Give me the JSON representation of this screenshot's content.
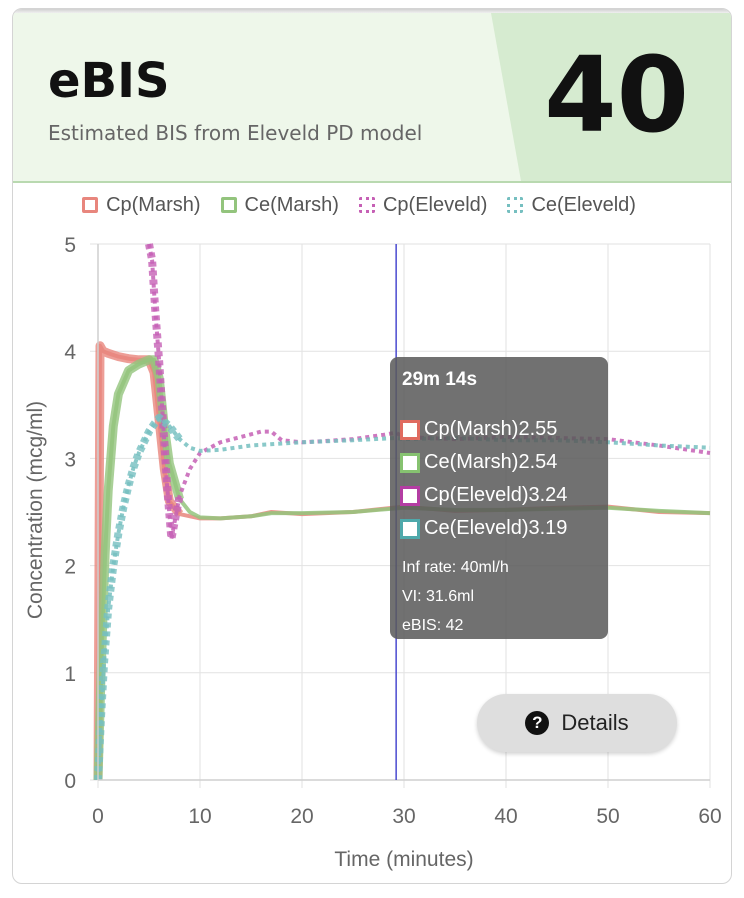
{
  "header": {
    "title": "eBIS",
    "subtitle": "Estimated BIS from Eleveld PD model",
    "score": "40"
  },
  "legend": [
    {
      "label": "Cp(Marsh)",
      "color": "#e8867d",
      "style": "solid"
    },
    {
      "label": "Ce(Marsh)",
      "color": "#93c47d",
      "style": "solid"
    },
    {
      "label": "Cp(Eleveld)",
      "color": "#c660b5",
      "style": "dotted"
    },
    {
      "label": "Ce(Eleveld)",
      "color": "#76bfc0",
      "style": "dotted"
    }
  ],
  "tooltip": {
    "time": "29m 14s",
    "rows": [
      {
        "text": "Cp(Marsh)2.55",
        "color": "#e06b60"
      },
      {
        "text": "Ce(Marsh)2.54",
        "color": "#86c270"
      },
      {
        "text": "Cp(Eleveld)3.24",
        "color": "#b43da3"
      },
      {
        "text": "Ce(Eleveld)3.19",
        "color": "#4fa9ab"
      }
    ],
    "inf_rate": "Inf rate: 40ml/h",
    "vi": "VI: 31.6ml",
    "ebis": "eBIS: 42"
  },
  "details_button": {
    "label": "Details",
    "icon": "help-icon"
  },
  "chart_data": {
    "type": "line",
    "xlabel": "Time (minutes)",
    "ylabel": "Concentration (mcg/ml)",
    "xlim": [
      0,
      60
    ],
    "ylim": [
      0,
      5
    ],
    "xticks": [
      0,
      10,
      20,
      30,
      40,
      50,
      60
    ],
    "yticks": [
      0,
      1,
      2,
      3,
      4,
      5
    ],
    "grid": true,
    "legend_position": "top",
    "cursor_x": 29.23,
    "series": [
      {
        "name": "Cp(Marsh)",
        "color": "#e8867d",
        "style": "solid",
        "x": [
          0,
          0.2,
          0.5,
          1,
          2,
          3,
          4,
          5,
          5.5,
          6,
          6.5,
          7,
          8,
          10,
          12,
          15,
          17,
          20,
          25,
          30,
          35,
          40,
          45,
          50,
          55,
          60
        ],
        "y": [
          0,
          4.05,
          4.0,
          3.98,
          3.95,
          3.93,
          3.92,
          3.92,
          3.8,
          3.35,
          2.9,
          2.6,
          2.48,
          2.44,
          2.44,
          2.46,
          2.5,
          2.48,
          2.5,
          2.55,
          2.51,
          2.52,
          2.54,
          2.55,
          2.5,
          2.49
        ]
      },
      {
        "name": "Ce(Marsh)",
        "color": "#93c47d",
        "style": "solid",
        "x": [
          0,
          0.3,
          0.7,
          1,
          1.5,
          2,
          3,
          4,
          5,
          5.5,
          6,
          6.5,
          7,
          8,
          9,
          10,
          12,
          15,
          17,
          20,
          25,
          30,
          35,
          40,
          45,
          50,
          55,
          60
        ],
        "y": [
          0,
          1.0,
          2.1,
          2.7,
          3.3,
          3.6,
          3.82,
          3.88,
          3.92,
          3.92,
          3.75,
          3.3,
          2.95,
          2.62,
          2.5,
          2.45,
          2.44,
          2.46,
          2.49,
          2.49,
          2.5,
          2.54,
          2.52,
          2.52,
          2.53,
          2.54,
          2.51,
          2.49
        ]
      },
      {
        "name": "Cp(Eleveld)",
        "color": "#c660b5",
        "style": "dotted",
        "x": [
          5.0,
          5.3,
          5.6,
          6.0,
          6.4,
          6.8,
          7.2,
          7.6,
          8,
          9,
          10,
          12,
          14,
          16,
          17,
          18,
          20,
          22,
          25,
          28,
          29.2,
          30,
          35,
          40,
          45,
          50,
          55,
          60
        ],
        "y": [
          5.0,
          4.85,
          4.4,
          3.9,
          3.3,
          2.7,
          2.25,
          2.45,
          2.65,
          2.9,
          3.05,
          3.15,
          3.2,
          3.25,
          3.25,
          3.17,
          3.15,
          3.16,
          3.18,
          3.22,
          3.24,
          3.2,
          3.18,
          3.2,
          3.19,
          3.18,
          3.12,
          3.05
        ]
      },
      {
        "name": "Ce(Eleveld)",
        "color": "#76bfc0",
        "style": "dotted",
        "x": [
          0,
          0.3,
          0.6,
          1,
          1.5,
          2,
          2.5,
          3,
          3.5,
          4,
          4.5,
          5,
          5.5,
          6,
          7,
          8,
          9,
          10,
          12,
          15,
          20,
          25,
          29.2,
          30,
          35,
          40,
          45,
          50,
          55,
          60
        ],
        "y": [
          0,
          0.6,
          1.1,
          1.6,
          2.0,
          2.3,
          2.55,
          2.75,
          2.92,
          3.05,
          3.15,
          3.25,
          3.32,
          3.38,
          3.3,
          3.18,
          3.1,
          3.07,
          3.08,
          3.12,
          3.15,
          3.17,
          3.19,
          3.18,
          3.19,
          3.17,
          3.17,
          3.15,
          3.12,
          3.1
        ]
      }
    ]
  }
}
